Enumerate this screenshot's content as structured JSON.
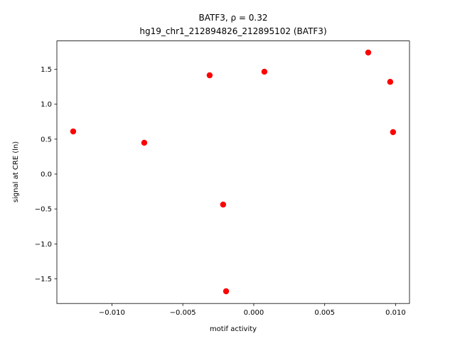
{
  "chart_data": {
    "type": "scatter",
    "title": "BATF3, ρ = 0.32",
    "subtitle": "hg19_chr1_212894826_212895102 (BATF3)",
    "x_label": "motif activity",
    "y_label": "signal at CRE (ln)",
    "x": [
      -0.01273,
      -0.00772,
      -0.00311,
      -0.00216,
      -0.00195,
      0.00075,
      0.00807,
      0.00962,
      0.00982
    ],
    "values": [
      0.61,
      0.448,
      1.414,
      -0.437,
      -1.678,
      1.465,
      1.74,
      1.32,
      0.6
    ],
    "color": "#ff0000",
    "xlim": [
      -0.01388,
      0.01098
    ],
    "ylim": [
      -1.853,
      1.906
    ],
    "xticks": [
      {
        "value": -0.01,
        "label": "−0.010"
      },
      {
        "value": -0.005,
        "label": "−0.005"
      },
      {
        "value": 0,
        "label": "0.000"
      },
      {
        "value": 0.005,
        "label": "0.005"
      },
      {
        "value": 0.01,
        "label": "0.010"
      }
    ],
    "yticks": [
      {
        "value": -1.5,
        "label": "−1.5"
      },
      {
        "value": -1,
        "label": "−1.0"
      },
      {
        "value": -0.5,
        "label": "−0.5"
      },
      {
        "value": 0,
        "label": "0.0"
      },
      0.5,
      {
        "value": 1,
        "label": "1.0"
      },
      1.5
    ],
    "grid": false
  }
}
